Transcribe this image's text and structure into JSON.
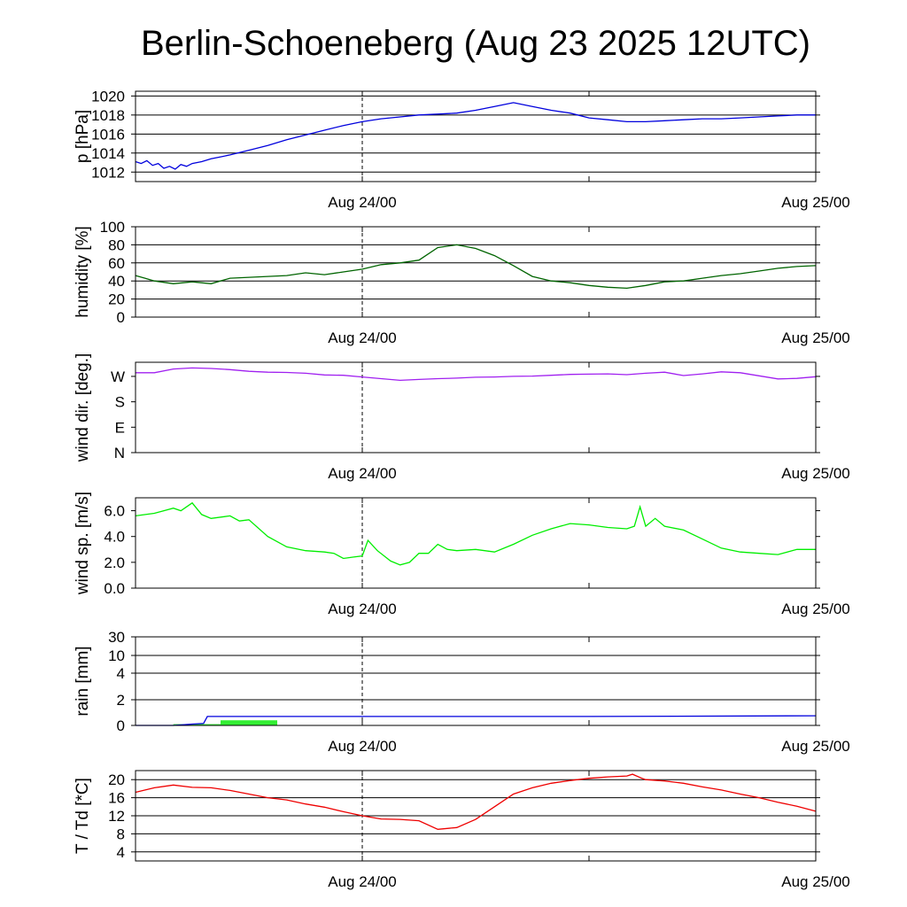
{
  "chart_data": {
    "type": "line",
    "title": "Berlin-Schoeneberg (Aug 23 2025 12UTC)",
    "x_range": [
      "Aug 23 12UTC",
      "Aug 25 00UTC"
    ],
    "x_ticks": [
      {
        "hour": 12,
        "label": "Aug 24/00"
      },
      {
        "hour": 36,
        "label": "Aug 25/00"
      }
    ],
    "x_minor_ticks_hours": [
      24
    ],
    "x_dashed_line_hour": 12,
    "panels": [
      {
        "id": "pressure",
        "ylabel": "p [hPa]",
        "ylim": [
          1011,
          1020.5
        ],
        "grid": true,
        "yticks": [
          {
            "value": 1012,
            "label": "1012"
          },
          {
            "value": 1014,
            "label": "1014"
          },
          {
            "value": 1016,
            "label": "1016"
          },
          {
            "value": 1018,
            "label": "1018"
          },
          {
            "value": 1020,
            "label": "1020"
          }
        ],
        "series": [
          {
            "color": "#0000dd",
            "x": [
              0,
              0.3,
              0.6,
              0.9,
              1.2,
              1.5,
              1.8,
              2.1,
              2.4,
              2.7,
              3,
              3.5,
              4,
              4.5,
              5,
              6,
              7,
              8,
              9,
              10,
              11,
              12,
              13,
              14,
              15,
              16,
              17,
              18,
              19,
              20,
              21,
              22,
              23,
              24,
              25,
              26,
              27,
              28,
              29,
              30,
              31,
              32,
              33,
              34,
              35,
              36
            ],
            "y": [
              1013.1,
              1012.9,
              1013.2,
              1012.7,
              1012.9,
              1012.4,
              1012.6,
              1012.3,
              1012.8,
              1012.6,
              1012.9,
              1013.1,
              1013.4,
              1013.6,
              1013.8,
              1014.3,
              1014.8,
              1015.4,
              1015.9,
              1016.4,
              1016.9,
              1017.3,
              1017.6,
              1017.8,
              1018.0,
              1018.1,
              1018.2,
              1018.5,
              1018.9,
              1019.3,
              1018.9,
              1018.5,
              1018.2,
              1017.7,
              1017.5,
              1017.3,
              1017.3,
              1017.4,
              1017.5,
              1017.6,
              1017.6,
              1017.7,
              1017.8,
              1017.9,
              1018.0,
              1018.0
            ]
          }
        ]
      },
      {
        "id": "humidity",
        "ylabel": "humidity [%]",
        "ylim": [
          0,
          100
        ],
        "grid": true,
        "yticks": [
          {
            "value": 0,
            "label": "0"
          },
          {
            "value": 20,
            "label": "20"
          },
          {
            "value": 40,
            "label": "40"
          },
          {
            "value": 60,
            "label": "60"
          },
          {
            "value": 80,
            "label": "80"
          },
          {
            "value": 100,
            "label": "100"
          }
        ],
        "series": [
          {
            "color": "#006400",
            "x": [
              0,
              0.5,
              1,
              2,
              3,
              4,
              5,
              6,
              7,
              8,
              9,
              10,
              11,
              12,
              13,
              14,
              15,
              16,
              17,
              18,
              19,
              20,
              21,
              22,
              23,
              24,
              25,
              26,
              27,
              28,
              29,
              30,
              31,
              32,
              33,
              34,
              35,
              36
            ],
            "y": [
              46,
              43,
              40,
              37,
              39,
              37,
              43,
              44,
              45,
              46,
              49,
              47,
              50,
              53,
              58,
              60,
              63,
              77,
              80,
              76,
              68,
              57,
              45,
              40,
              38,
              35,
              33,
              32,
              35,
              39,
              40,
              43,
              46,
              48,
              51,
              54,
              56,
              57
            ]
          }
        ]
      },
      {
        "id": "wind_dir",
        "ylabel": "wind dir. [deg.]",
        "ylim": [
          0,
          320
        ],
        "grid": false,
        "yticks": [
          {
            "value": 0,
            "label": "N"
          },
          {
            "value": 90,
            "label": "E"
          },
          {
            "value": 180,
            "label": "S"
          },
          {
            "value": 270,
            "label": "W"
          }
        ],
        "series": [
          {
            "color": "#a020f0",
            "x": [
              0,
              1,
              2,
              3,
              4,
              5,
              6,
              7,
              8,
              9,
              10,
              11,
              12,
              13,
              14,
              15,
              16,
              17,
              18,
              19,
              20,
              21,
              22,
              23,
              24,
              25,
              26,
              27,
              28,
              29,
              30,
              31,
              32,
              33,
              34,
              35,
              36
            ],
            "y": [
              283,
              283,
              296,
              300,
              298,
              294,
              288,
              285,
              284,
              281,
              275,
              274,
              268,
              262,
              256,
              259,
              262,
              264,
              267,
              268,
              270,
              271,
              274,
              277,
              278,
              279,
              276,
              281,
              285,
              273,
              279,
              286,
              283,
              272,
              261,
              263,
              269
            ]
          }
        ]
      },
      {
        "id": "wind_speed",
        "ylabel": "wind sp. [m/s]",
        "ylim": [
          0,
          7
        ],
        "grid": false,
        "yticks": [
          {
            "value": 0,
            "label": "0.0"
          },
          {
            "value": 2,
            "label": "2.0"
          },
          {
            "value": 4,
            "label": "4.0"
          },
          {
            "value": 6,
            "label": "6.0"
          }
        ],
        "series": [
          {
            "color": "#00ee00",
            "x": [
              0,
              1,
              1.5,
              2,
              2.4,
              3,
              3.5,
              4,
              5,
              5.5,
              6,
              7,
              8,
              9,
              10,
              10.5,
              11,
              11.5,
              12,
              12.3,
              12.8,
              13.5,
              14,
              14.5,
              15,
              15.5,
              16,
              16.5,
              17,
              18,
              19,
              20,
              21,
              22,
              23,
              24,
              25,
              26,
              26.4,
              26.7,
              27,
              27.5,
              28,
              29,
              30,
              31,
              32,
              33,
              34,
              35,
              36
            ],
            "y": [
              5.6,
              5.8,
              6.0,
              6.2,
              6.0,
              6.6,
              5.7,
              5.4,
              5.6,
              5.2,
              5.3,
              4.0,
              3.2,
              2.9,
              2.8,
              2.7,
              2.3,
              2.4,
              2.5,
              3.7,
              2.9,
              2.1,
              1.8,
              2.0,
              2.7,
              2.7,
              3.4,
              3.0,
              2.9,
              3.0,
              2.8,
              3.4,
              4.1,
              4.6,
              5.0,
              4.9,
              4.7,
              4.6,
              4.8,
              6.3,
              4.8,
              5.4,
              4.8,
              4.5,
              3.8,
              3.1,
              2.8,
              2.7,
              2.6,
              3.0,
              3.0
            ]
          }
        ]
      },
      {
        "id": "rain",
        "ylabel": "rain [mm]",
        "ylim": [
          0,
          30
        ],
        "grid": true,
        "yscale": "custom",
        "yticks": [
          {
            "value": 0,
            "label": "0"
          },
          {
            "value": 2,
            "label": "2"
          },
          {
            "value": 4,
            "label": "4"
          },
          {
            "value": 10,
            "label": "10"
          },
          {
            "value": 30,
            "label": "30"
          }
        ],
        "bars": {
          "color": "#33ee33",
          "x_start": [
            2.0,
            4.5
          ],
          "x_end": [
            4.5,
            7.5
          ],
          "values": [
            0.1,
            0.4
          ]
        },
        "series": [
          {
            "color": "#0000dd",
            "x": [
              0,
              2,
              3,
              3.6,
              3.8,
              12,
              24,
              36
            ],
            "y": [
              0,
              0,
              0.1,
              0.15,
              0.7,
              0.7,
              0.7,
              0.75
            ]
          }
        ]
      },
      {
        "id": "temperature",
        "ylabel": "T / Td [*C]",
        "ylim": [
          2,
          22
        ],
        "grid": true,
        "yticks": [
          {
            "value": 4,
            "label": "4"
          },
          {
            "value": 8,
            "label": "8"
          },
          {
            "value": 12,
            "label": "12"
          },
          {
            "value": 16,
            "label": "16"
          },
          {
            "value": 20,
            "label": "20"
          }
        ],
        "series": [
          {
            "color": "#ee0000",
            "x": [
              0,
              1,
              2,
              3,
              4,
              5,
              6,
              7,
              8,
              9,
              10,
              11,
              12,
              13,
              14,
              15,
              16,
              17,
              18,
              19,
              20,
              21,
              22,
              23,
              24,
              25,
              26,
              26.3,
              26.8,
              27,
              28,
              29,
              30,
              31,
              32,
              33,
              34,
              35,
              36
            ],
            "y": [
              17.2,
              18.2,
              18.8,
              18.3,
              18.2,
              17.6,
              16.8,
              16.0,
              15.5,
              14.6,
              13.9,
              12.9,
              12.0,
              11.3,
              11.2,
              10.9,
              9.0,
              9.4,
              11.2,
              14.0,
              16.8,
              18.2,
              19.2,
              19.8,
              20.3,
              20.6,
              20.8,
              21.2,
              20.3,
              20.0,
              19.7,
              19.2,
              18.4,
              17.7,
              16.8,
              16.0,
              15.0,
              14.1,
              13.0
            ]
          }
        ]
      }
    ]
  }
}
